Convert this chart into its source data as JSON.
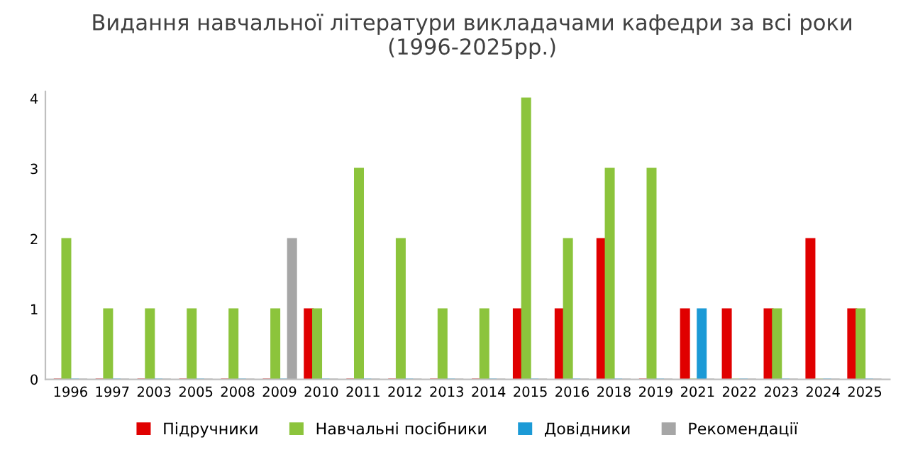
{
  "chart_data": {
    "type": "bar",
    "title": "Видання навчальної літератури викладачами кафедри за всі роки\n(1996-2025рр.)",
    "categories": [
      "1996",
      "1997",
      "2003",
      "2005",
      "2008",
      "2009",
      "2010",
      "2011",
      "2012",
      "2013",
      "2014",
      "2015",
      "2016",
      "2018",
      "2019",
      "2021",
      "2022",
      "2023",
      "2024",
      "2025"
    ],
    "series": [
      {
        "name": "Підручники",
        "color": "#e00000",
        "values": [
          0,
          0,
          0,
          0,
          0,
          0,
          1,
          0,
          0,
          0,
          0,
          1,
          1,
          2,
          0,
          1,
          1,
          1,
          2,
          1
        ]
      },
      {
        "name": "Навчальні посібники",
        "color": "#8cc43c",
        "values": [
          2,
          1,
          1,
          1,
          1,
          1,
          1,
          3,
          2,
          1,
          1,
          4,
          2,
          3,
          3,
          0,
          0,
          1,
          0,
          1
        ]
      },
      {
        "name": "Довідники",
        "color": "#1c9ad6",
        "values": [
          0,
          0,
          0,
          0,
          0,
          0,
          0,
          0,
          0,
          0,
          0,
          0,
          0,
          0,
          0,
          1,
          0,
          0,
          0,
          0
        ]
      },
      {
        "name": "Рекомендації",
        "color": "#a6a6a6",
        "values": [
          0,
          0,
          0,
          0,
          0,
          2,
          0,
          0,
          0,
          0,
          0,
          0,
          0,
          0,
          0,
          0,
          0,
          0,
          0,
          0
        ]
      }
    ],
    "ylim": [
      0,
      4.1
    ],
    "yticks": [
      0,
      1,
      2,
      3,
      4
    ],
    "grid": false,
    "legend": "bottom"
  }
}
